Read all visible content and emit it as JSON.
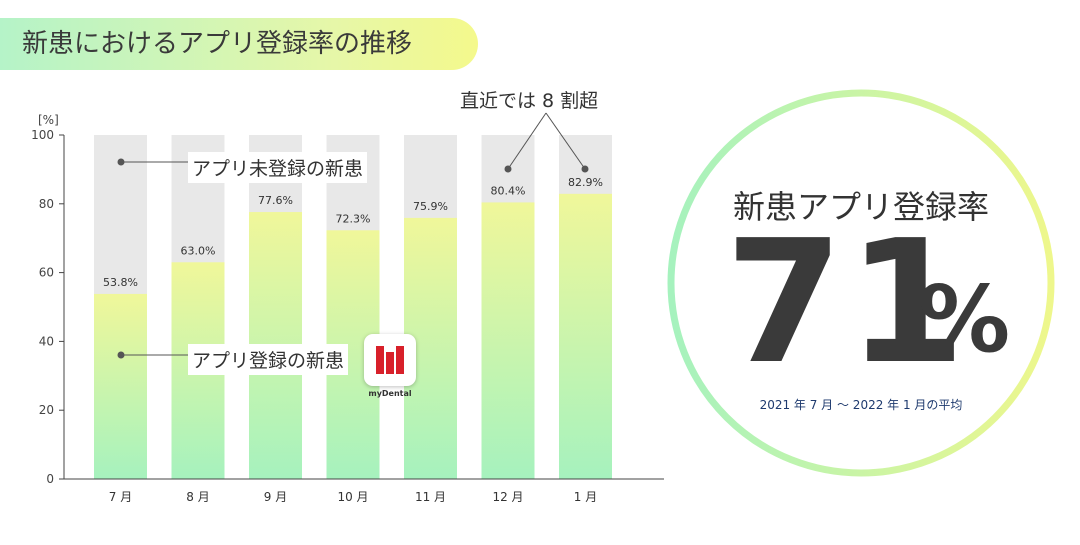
{
  "title": "新患におけるアプリ登録率の推移",
  "callout": "直近では 8 割超",
  "legend": {
    "unregistered": "アプリ未登録の新患",
    "registered": "アプリ登録の新患"
  },
  "logo": {
    "text": "myDental"
  },
  "summary": {
    "title": "新患アプリ登録率",
    "value": "71",
    "unit": "%",
    "note": "2021 年 7 月 〜 2022 年 1 月の平均"
  },
  "chart_data": {
    "type": "bar",
    "categories": [
      "7 月",
      "8 月",
      "9 月",
      "10 月",
      "11 月",
      "12 月",
      "1 月"
    ],
    "values": [
      53.8,
      63.0,
      77.6,
      72.3,
      75.9,
      80.4,
      82.9
    ],
    "value_labels": [
      "53.8%",
      "63.0%",
      "77.6%",
      "72.3%",
      "75.9%",
      "80.4%",
      "82.9%"
    ],
    "ylabel": "[%]",
    "ylim": [
      0,
      100
    ],
    "yticks": [
      "0",
      "20",
      "40",
      "60",
      "80",
      "100"
    ],
    "stacked_background_total": 100,
    "grid": false,
    "colors": {
      "registered_top": "#f0f79a",
      "registered_bottom": "#a6f2be",
      "unregistered": "#e8e8e8"
    }
  }
}
